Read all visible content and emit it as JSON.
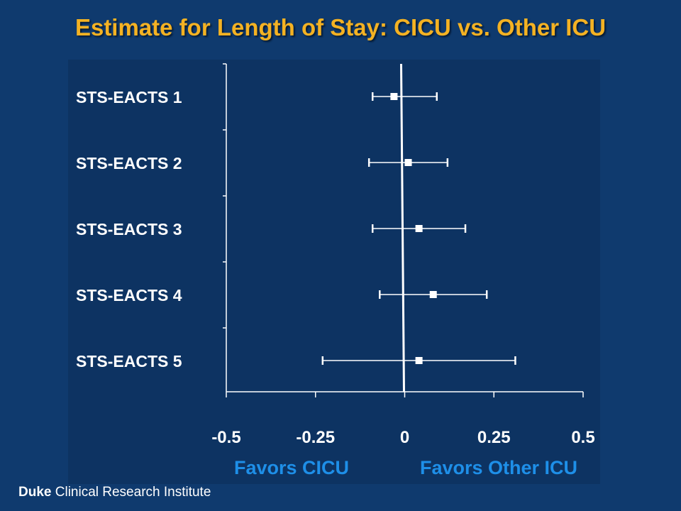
{
  "title": "Estimate for Length of Stay: CICU vs. Other ICU",
  "footer": {
    "brand": "Duke",
    "rest": "Clinical Research Institute"
  },
  "favors": {
    "left": "Favors CICU",
    "right": "Favors Other ICU"
  },
  "chart_data": {
    "type": "forest",
    "title": "Estimate for Length of Stay: CICU vs. Other ICU",
    "categories": [
      "STS-EACTS 1",
      "STS-EACTS 2",
      "STS-EACTS 3",
      "STS-EACTS 4",
      "STS-EACTS 5"
    ],
    "estimates": [
      -0.03,
      0.01,
      0.04,
      0.08,
      0.04
    ],
    "lower": [
      -0.09,
      -0.1,
      -0.09,
      -0.07,
      -0.23
    ],
    "upper": [
      0.09,
      0.12,
      0.17,
      0.23,
      0.31
    ],
    "xlim": [
      -0.5,
      0.5
    ],
    "xticks": [
      "-0.5",
      "-0.25",
      "0",
      "0.25",
      "0.5"
    ],
    "reference_line": 0,
    "colors": {
      "background": "#0f3a6e",
      "title": "#f4b223",
      "marks": "#ffffff",
      "favor_text": "#1e8fe8"
    }
  }
}
